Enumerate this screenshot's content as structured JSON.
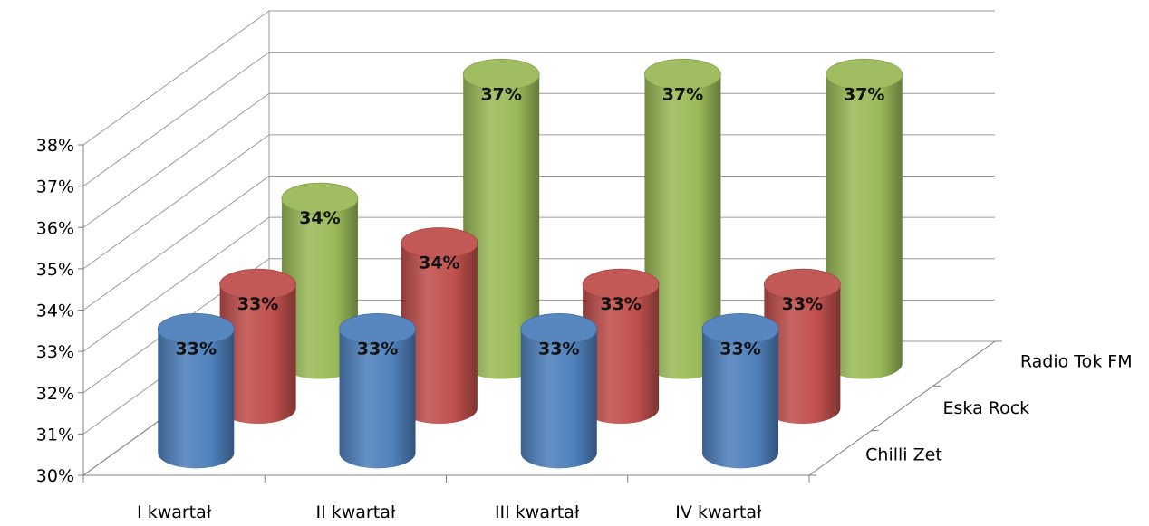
{
  "chart_data": {
    "type": "bar",
    "subtype": "3d-cylinder",
    "title": "",
    "categories": [
      "I kwartał",
      "II kwartał",
      "III kwartał",
      "IV kwartał"
    ],
    "series": [
      {
        "name": "Chilli Zet",
        "values": [
          0.33,
          0.33,
          0.33,
          0.33
        ],
        "labels": [
          "33%",
          "33%",
          "33%",
          "33%"
        ],
        "color": "#4f81bd"
      },
      {
        "name": "Eska Rock",
        "values": [
          0.33,
          0.34,
          0.33,
          0.33
        ],
        "labels": [
          "33%",
          "34%",
          "33%",
          "33%"
        ],
        "color": "#c0504d"
      },
      {
        "name": "Radio Tok FM",
        "values": [
          0.34,
          0.37,
          0.37,
          0.37
        ],
        "labels": [
          "34%",
          "37%",
          "37%",
          "37%"
        ],
        "color": "#9bbb59"
      }
    ],
    "yticks": [
      "30%",
      "31%",
      "32%",
      "33%",
      "34%",
      "35%",
      "36%",
      "37%",
      "38%"
    ],
    "ylim": [
      0.3,
      0.38
    ],
    "grid": true,
    "legend": "none"
  }
}
